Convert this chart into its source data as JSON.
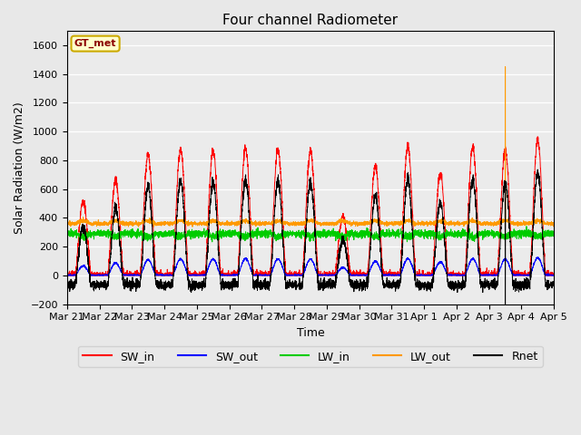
{
  "title": "Four channel Radiometer",
  "xlabel": "Time",
  "ylabel": "Solar Radiation (W/m2)",
  "ylim": [
    -200,
    1700
  ],
  "yticks": [
    -200,
    0,
    200,
    400,
    600,
    800,
    1000,
    1200,
    1400,
    1600
  ],
  "bg_color": "#e8e8e8",
  "plot_bg_color": "#ebebeb",
  "station_label": "GT_met",
  "station_label_color": "#8B0000",
  "station_box_color": "#ffffcc",
  "station_box_edge": "#ccaa00",
  "colors": {
    "SW_in": "#ff0000",
    "SW_out": "#0000ff",
    "LW_in": "#00cc00",
    "LW_out": "#ff9900",
    "Rnet": "#000000"
  },
  "xtick_labels": [
    "Mar 21",
    "Mar 22",
    "Mar 23",
    "Mar 24",
    "Mar 25",
    "Mar 26",
    "Mar 27",
    "Mar 28",
    "Mar 29",
    "Mar 30",
    "Mar 31",
    "Apr 1",
    "Apr 2",
    "Apr 3",
    "Apr 4",
    "Apr 5"
  ],
  "n_days": 15,
  "pts_per_day": 288,
  "figsize": [
    6.4,
    4.8
  ],
  "dpi": 100
}
